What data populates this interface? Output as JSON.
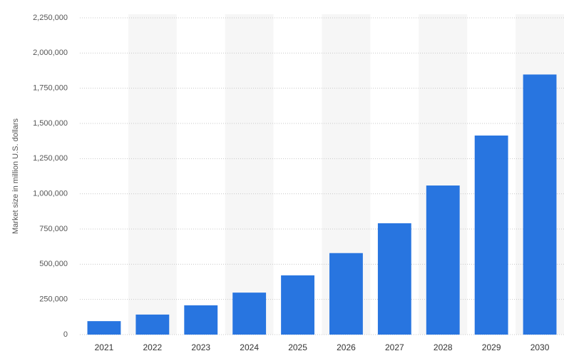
{
  "chart_data": {
    "type": "bar",
    "y_label": "Market size in million U.S. dollars",
    "categories": [
      "2021",
      "2022",
      "2023",
      "2024",
      "2025",
      "2026",
      "2027",
      "2028",
      "2029",
      "2030"
    ],
    "values": [
      95600,
      142300,
      207900,
      298250,
      420680,
      579000,
      791000,
      1059000,
      1414000,
      1847500
    ],
    "color": "#2875e0",
    "ylim": [
      0,
      2250000
    ],
    "yticks": [
      0,
      {
        "value": 250000,
        "label": "250,000"
      },
      {
        "value": 500000,
        "label": "500,000"
      },
      {
        "value": 750000,
        "label": "750,000"
      },
      {
        "value": 1000000,
        "label": "1,000,000"
      },
      {
        "value": 1250000,
        "label": "1,250,000"
      },
      {
        "value": 1500000,
        "label": "1,500,000"
      },
      {
        "value": 1750000,
        "label": "1,750,000"
      },
      {
        "value": 2000000,
        "label": "2,000,000"
      },
      {
        "value": 2250000,
        "label": "2,250,000"
      }
    ],
    "grid": true
  }
}
